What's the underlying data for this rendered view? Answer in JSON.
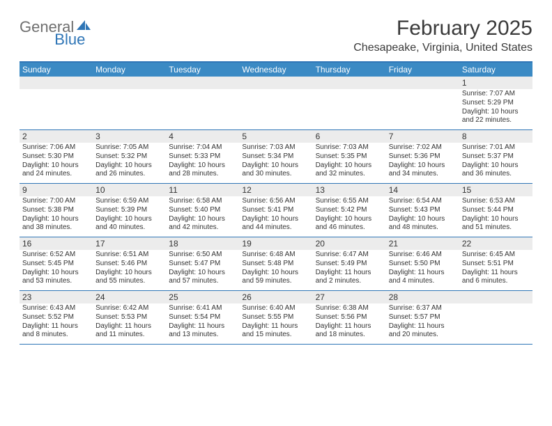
{
  "logo": {
    "word1": "General",
    "word2": "Blue"
  },
  "title": "February 2025",
  "location": "Chesapeake, Virginia, United States",
  "colors": {
    "accent": "#2e75b6",
    "header_bg": "#3b8ac4",
    "daynum_bg": "#ececec",
    "text": "#333333",
    "logo_gray": "#6e6e6e"
  },
  "weekdays": [
    "Sunday",
    "Monday",
    "Tuesday",
    "Wednesday",
    "Thursday",
    "Friday",
    "Saturday"
  ],
  "weeks": [
    [
      {
        "n": "",
        "sunrise": "",
        "sunset": "",
        "daylight": ""
      },
      {
        "n": "",
        "sunrise": "",
        "sunset": "",
        "daylight": ""
      },
      {
        "n": "",
        "sunrise": "",
        "sunset": "",
        "daylight": ""
      },
      {
        "n": "",
        "sunrise": "",
        "sunset": "",
        "daylight": ""
      },
      {
        "n": "",
        "sunrise": "",
        "sunset": "",
        "daylight": ""
      },
      {
        "n": "",
        "sunrise": "",
        "sunset": "",
        "daylight": ""
      },
      {
        "n": "1",
        "sunrise": "Sunrise: 7:07 AM",
        "sunset": "Sunset: 5:29 PM",
        "daylight": "Daylight: 10 hours and 22 minutes."
      }
    ],
    [
      {
        "n": "2",
        "sunrise": "Sunrise: 7:06 AM",
        "sunset": "Sunset: 5:30 PM",
        "daylight": "Daylight: 10 hours and 24 minutes."
      },
      {
        "n": "3",
        "sunrise": "Sunrise: 7:05 AM",
        "sunset": "Sunset: 5:32 PM",
        "daylight": "Daylight: 10 hours and 26 minutes."
      },
      {
        "n": "4",
        "sunrise": "Sunrise: 7:04 AM",
        "sunset": "Sunset: 5:33 PM",
        "daylight": "Daylight: 10 hours and 28 minutes."
      },
      {
        "n": "5",
        "sunrise": "Sunrise: 7:03 AM",
        "sunset": "Sunset: 5:34 PM",
        "daylight": "Daylight: 10 hours and 30 minutes."
      },
      {
        "n": "6",
        "sunrise": "Sunrise: 7:03 AM",
        "sunset": "Sunset: 5:35 PM",
        "daylight": "Daylight: 10 hours and 32 minutes."
      },
      {
        "n": "7",
        "sunrise": "Sunrise: 7:02 AM",
        "sunset": "Sunset: 5:36 PM",
        "daylight": "Daylight: 10 hours and 34 minutes."
      },
      {
        "n": "8",
        "sunrise": "Sunrise: 7:01 AM",
        "sunset": "Sunset: 5:37 PM",
        "daylight": "Daylight: 10 hours and 36 minutes."
      }
    ],
    [
      {
        "n": "9",
        "sunrise": "Sunrise: 7:00 AM",
        "sunset": "Sunset: 5:38 PM",
        "daylight": "Daylight: 10 hours and 38 minutes."
      },
      {
        "n": "10",
        "sunrise": "Sunrise: 6:59 AM",
        "sunset": "Sunset: 5:39 PM",
        "daylight": "Daylight: 10 hours and 40 minutes."
      },
      {
        "n": "11",
        "sunrise": "Sunrise: 6:58 AM",
        "sunset": "Sunset: 5:40 PM",
        "daylight": "Daylight: 10 hours and 42 minutes."
      },
      {
        "n": "12",
        "sunrise": "Sunrise: 6:56 AM",
        "sunset": "Sunset: 5:41 PM",
        "daylight": "Daylight: 10 hours and 44 minutes."
      },
      {
        "n": "13",
        "sunrise": "Sunrise: 6:55 AM",
        "sunset": "Sunset: 5:42 PM",
        "daylight": "Daylight: 10 hours and 46 minutes."
      },
      {
        "n": "14",
        "sunrise": "Sunrise: 6:54 AM",
        "sunset": "Sunset: 5:43 PM",
        "daylight": "Daylight: 10 hours and 48 minutes."
      },
      {
        "n": "15",
        "sunrise": "Sunrise: 6:53 AM",
        "sunset": "Sunset: 5:44 PM",
        "daylight": "Daylight: 10 hours and 51 minutes."
      }
    ],
    [
      {
        "n": "16",
        "sunrise": "Sunrise: 6:52 AM",
        "sunset": "Sunset: 5:45 PM",
        "daylight": "Daylight: 10 hours and 53 minutes."
      },
      {
        "n": "17",
        "sunrise": "Sunrise: 6:51 AM",
        "sunset": "Sunset: 5:46 PM",
        "daylight": "Daylight: 10 hours and 55 minutes."
      },
      {
        "n": "18",
        "sunrise": "Sunrise: 6:50 AM",
        "sunset": "Sunset: 5:47 PM",
        "daylight": "Daylight: 10 hours and 57 minutes."
      },
      {
        "n": "19",
        "sunrise": "Sunrise: 6:48 AM",
        "sunset": "Sunset: 5:48 PM",
        "daylight": "Daylight: 10 hours and 59 minutes."
      },
      {
        "n": "20",
        "sunrise": "Sunrise: 6:47 AM",
        "sunset": "Sunset: 5:49 PM",
        "daylight": "Daylight: 11 hours and 2 minutes."
      },
      {
        "n": "21",
        "sunrise": "Sunrise: 6:46 AM",
        "sunset": "Sunset: 5:50 PM",
        "daylight": "Daylight: 11 hours and 4 minutes."
      },
      {
        "n": "22",
        "sunrise": "Sunrise: 6:45 AM",
        "sunset": "Sunset: 5:51 PM",
        "daylight": "Daylight: 11 hours and 6 minutes."
      }
    ],
    [
      {
        "n": "23",
        "sunrise": "Sunrise: 6:43 AM",
        "sunset": "Sunset: 5:52 PM",
        "daylight": "Daylight: 11 hours and 8 minutes."
      },
      {
        "n": "24",
        "sunrise": "Sunrise: 6:42 AM",
        "sunset": "Sunset: 5:53 PM",
        "daylight": "Daylight: 11 hours and 11 minutes."
      },
      {
        "n": "25",
        "sunrise": "Sunrise: 6:41 AM",
        "sunset": "Sunset: 5:54 PM",
        "daylight": "Daylight: 11 hours and 13 minutes."
      },
      {
        "n": "26",
        "sunrise": "Sunrise: 6:40 AM",
        "sunset": "Sunset: 5:55 PM",
        "daylight": "Daylight: 11 hours and 15 minutes."
      },
      {
        "n": "27",
        "sunrise": "Sunrise: 6:38 AM",
        "sunset": "Sunset: 5:56 PM",
        "daylight": "Daylight: 11 hours and 18 minutes."
      },
      {
        "n": "28",
        "sunrise": "Sunrise: 6:37 AM",
        "sunset": "Sunset: 5:57 PM",
        "daylight": "Daylight: 11 hours and 20 minutes."
      },
      {
        "n": "",
        "sunrise": "",
        "sunset": "",
        "daylight": ""
      }
    ]
  ]
}
